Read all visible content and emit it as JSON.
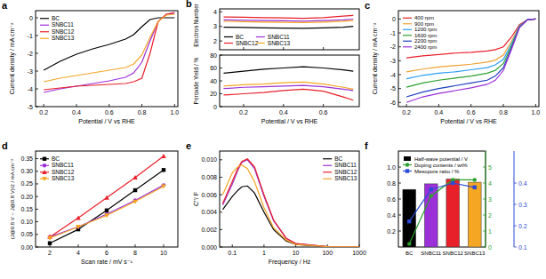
{
  "chart_data": [
    {
      "type": "line",
      "title": "a",
      "xlabel": "Potential / V vs RHE",
      "ylabel": "Current density / mA cm⁻²",
      "x": [
        0.2,
        0.3,
        0.4,
        0.5,
        0.6,
        0.7,
        0.75,
        0.8,
        0.85,
        0.9,
        0.95,
        1.0
      ],
      "xlim": [
        0.15,
        1.02
      ],
      "xticks": [
        0.2,
        0.4,
        0.6,
        0.8,
        {
          "value": 1.0,
          "label": "1.0"
        }
      ],
      "ylim": [
        -5,
        0.4
      ],
      "yticks": [
        -5,
        -4,
        -3,
        -2,
        -1,
        0
      ],
      "legend": "upper left",
      "series": [
        {
          "name": "BC",
          "color": "#000000",
          "values": [
            -2.95,
            -2.45,
            -2.05,
            -1.75,
            -1.5,
            -1.2,
            -0.95,
            -0.5,
            -0.1,
            0.0,
            0.0,
            0.0
          ]
        },
        {
          "name": "SNBC11",
          "color": "#9b30d9",
          "values": [
            -4.2,
            -4.0,
            -3.85,
            -3.7,
            -3.55,
            -3.35,
            -3.1,
            -2.5,
            -1.3,
            -0.2,
            0.2,
            0.25
          ]
        },
        {
          "name": "SNBC12",
          "color": "#e8202a",
          "values": [
            -4.05,
            -3.95,
            -3.85,
            -3.8,
            -3.75,
            -3.7,
            -3.6,
            -3.4,
            -2.0,
            -0.2,
            0.2,
            0.3
          ]
        },
        {
          "name": "SNBC13",
          "color": "#f5a623",
          "values": [
            -3.6,
            -3.4,
            -3.25,
            -3.1,
            -2.95,
            -2.8,
            -2.6,
            -2.1,
            -1.1,
            -0.2,
            0.15,
            0.2
          ]
        }
      ]
    },
    {
      "type": "line",
      "title": "b",
      "ylabel": "Electron Number",
      "x": [
        0.1,
        0.2,
        0.3,
        0.4,
        0.5,
        0.6,
        0.7,
        0.75
      ],
      "xlim": [
        0.08,
        0.78
      ],
      "xticks": [
        0.2,
        0.4,
        0.6
      ],
      "ylim": [
        1.4,
        4.2
      ],
      "yticks": [
        2,
        3,
        4
      ],
      "tick_labels": "y",
      "legend": "lower left",
      "series": [
        {
          "name": "BC",
          "color": "#000000",
          "values": [
            2.95,
            2.93,
            2.9,
            2.88,
            2.87,
            2.9,
            2.95,
            3.0
          ]
        },
        {
          "name": "SNBC11",
          "color": "#9b30d9",
          "values": [
            3.45,
            3.42,
            3.4,
            3.38,
            3.36,
            3.4,
            3.45,
            3.5
          ]
        },
        {
          "name": "SNBC12",
          "color": "#e8202a",
          "values": [
            3.65,
            3.63,
            3.6,
            3.58,
            3.55,
            3.6,
            3.7,
            3.75
          ]
        },
        {
          "name": "SNBC13",
          "color": "#f5a623",
          "values": [
            3.35,
            3.32,
            3.3,
            3.28,
            3.26,
            3.3,
            3.35,
            3.4
          ]
        }
      ]
    },
    {
      "type": "line",
      "xlabel": "Potential / V vs RHE",
      "ylabel": "Peroxide Yield / %",
      "x": [
        0.1,
        0.2,
        0.3,
        0.4,
        0.5,
        0.6,
        0.7,
        0.75
      ],
      "xlim": [
        0.08,
        0.78
      ],
      "xticks": [
        0.2,
        0.4,
        0.6
      ],
      "ylim": [
        0,
        80
      ],
      "yticks": [
        0,
        20,
        40,
        60,
        80
      ],
      "series": [
        {
          "color": "#000000",
          "values": [
            52,
            55,
            58,
            60,
            62,
            60,
            57,
            55
          ]
        },
        {
          "color": "#9b30d9",
          "values": [
            28,
            30,
            31,
            32,
            33,
            31,
            27,
            25
          ]
        },
        {
          "color": "#e8202a",
          "values": [
            18,
            20,
            22,
            25,
            27,
            24,
            15,
            10
          ]
        },
        {
          "color": "#f5a623",
          "values": [
            32,
            34,
            35,
            37,
            38,
            35,
            30,
            27
          ]
        }
      ]
    },
    {
      "type": "line",
      "title": "c",
      "xlabel": "Potential / V vs RHE",
      "ylabel": "Current density / mA cm⁻²",
      "x": [
        0.2,
        0.3,
        0.4,
        0.5,
        0.6,
        0.7,
        0.75,
        0.8,
        0.85,
        0.9,
        0.95,
        1.0
      ],
      "xlim": [
        0.15,
        1.02
      ],
      "xticks": [
        0.2,
        0.4,
        0.6,
        0.8,
        {
          "value": 1.0,
          "label": "1.0"
        }
      ],
      "ylim": [
        -6.3,
        0.6
      ],
      "yticks": [
        -6,
        -5,
        -4,
        -3,
        -2,
        -1,
        0
      ],
      "legend": "upper left",
      "series": [
        {
          "name": "400 rpm",
          "color": "#e8202a",
          "values": [
            -2.8,
            -2.65,
            -2.55,
            -2.45,
            -2.4,
            -2.3,
            -2.2,
            -2.0,
            -1.3,
            -0.4,
            -0.05,
            0
          ]
        },
        {
          "name": "900 rpm",
          "color": "#f0a030",
          "values": [
            -3.8,
            -3.6,
            -3.45,
            -3.35,
            -3.25,
            -3.1,
            -2.95,
            -2.6,
            -1.6,
            -0.5,
            -0.05,
            0
          ]
        },
        {
          "name": "1200 rpm",
          "color": "#2a9df4",
          "values": [
            -4.3,
            -4.05,
            -3.9,
            -3.8,
            -3.65,
            -3.5,
            -3.3,
            -2.9,
            -1.8,
            -0.5,
            -0.05,
            0
          ]
        },
        {
          "name": "1600 rpm",
          "color": "#2ca02c",
          "values": [
            -4.9,
            -4.6,
            -4.4,
            -4.25,
            -4.1,
            -3.9,
            -3.7,
            -3.2,
            -1.95,
            -0.55,
            -0.05,
            0
          ]
        },
        {
          "name": "2200 rpm",
          "color": "#1f3fbf",
          "values": [
            -5.6,
            -5.25,
            -5.0,
            -4.8,
            -4.6,
            -4.4,
            -4.1,
            -3.5,
            -2.1,
            -0.6,
            -0.05,
            0
          ]
        },
        {
          "name": "2400 rpm",
          "color": "#9b30d9",
          "values": [
            -6.0,
            -5.6,
            -5.35,
            -5.15,
            -4.95,
            -4.7,
            -4.4,
            -3.7,
            -2.2,
            -0.6,
            -0.05,
            0
          ]
        }
      ]
    },
    {
      "type": "line",
      "title": "d",
      "xlabel": "Scan rate / mV s⁻¹",
      "ylabel": "(J@0.8 V − J@0.8 V)/2 / mA cm⁻²",
      "x": [
        2,
        4,
        6,
        8,
        10
      ],
      "xlim": [
        1,
        11
      ],
      "xticks": [
        2,
        4,
        6,
        8,
        10
      ],
      "ylim": [
        0,
        0.38
      ],
      "yticks": [
        {
          "value": 0,
          "label": "0.00"
        },
        {
          "value": 0.05,
          "label": "0.05"
        },
        {
          "value": 0.1,
          "label": "0.10"
        },
        {
          "value": 0.15,
          "label": "0.15"
        },
        {
          "value": 0.2,
          "label": "0.20"
        },
        {
          "value": 0.25,
          "label": "0.25"
        },
        {
          "value": 0.3,
          "label": "0.30"
        },
        {
          "value": 0.35,
          "label": "0.35"
        }
      ],
      "legend": "upper left",
      "series": [
        {
          "name": "BC",
          "color": "#000000",
          "marker": "square",
          "values": [
            0.015,
            0.07,
            0.145,
            0.225,
            0.305
          ]
        },
        {
          "name": "SNBC11",
          "color": "#9b30d9",
          "marker": "circle",
          "values": [
            0.04,
            0.08,
            0.13,
            0.185,
            0.245
          ]
        },
        {
          "name": "SNBC12",
          "color": "#e8202a",
          "marker": "triangle",
          "values": [
            0.04,
            0.115,
            0.195,
            0.275,
            0.36
          ]
        },
        {
          "name": "SNBC13",
          "color": "#f5a623",
          "marker": "triangle-down",
          "values": [
            0.035,
            0.08,
            0.125,
            0.18,
            0.24
          ]
        }
      ]
    },
    {
      "type": "line",
      "title": "e",
      "xlabel": "Frequency / Hz",
      "ylabel": "C''/ F",
      "log": "x",
      "x": [
        0.05,
        0.1,
        0.15,
        0.2,
        0.3,
        0.5,
        1,
        2,
        5,
        10,
        100,
        1000
      ],
      "xlim": [
        0.04,
        1000
      ],
      "xticks": [
        0.1,
        1,
        10,
        100,
        1000
      ],
      "ylim": [
        0,
        0.011
      ],
      "yticks": [
        {
          "value": 0,
          "label": "0.000"
        },
        {
          "value": 0.002,
          "label": "0.002"
        },
        {
          "value": 0.004,
          "label": "0.004"
        },
        {
          "value": 0.006,
          "label": "0.006"
        },
        {
          "value": 0.008,
          "label": "0.008"
        },
        {
          "value": 0.01,
          "label": "0.010"
        }
      ],
      "legend": "upper right",
      "series": [
        {
          "name": "BC",
          "color": "#000000",
          "values": [
            0.0043,
            0.0058,
            0.0065,
            0.0069,
            0.007,
            0.0062,
            0.004,
            0.002,
            0.0007,
            0.0003,
            5e-05,
            1e-05
          ]
        },
        {
          "name": "SNBC11",
          "color": "#9b30d9",
          "values": [
            0.0048,
            0.0072,
            0.0088,
            0.0097,
            0.01,
            0.009,
            0.0058,
            0.003,
            0.001,
            0.0004,
            5e-05,
            1e-05
          ]
        },
        {
          "name": "SNBC12",
          "color": "#e8202a",
          "values": [
            0.005,
            0.0075,
            0.009,
            0.0098,
            0.0101,
            0.0092,
            0.006,
            0.0031,
            0.001,
            0.0004,
            5e-05,
            1e-05
          ]
        },
        {
          "name": "SNBC13",
          "color": "#f5a623",
          "values": [
            0.006,
            0.0085,
            0.0092,
            0.0094,
            0.009,
            0.0075,
            0.0045,
            0.0022,
            0.0008,
            0.0003,
            5e-05,
            1e-05
          ]
        }
      ]
    },
    {
      "type": "bar",
      "title": "f",
      "categories": [
        "BC",
        "SNBC11",
        "SNBC12",
        "SNBC13"
      ],
      "ylim": [
        0,
        1.2
      ],
      "yticks": [
        0.2,
        0.4,
        0.6,
        0.8,
        {
          "value": 1.0,
          "label": "1.0"
        }
      ],
      "y2lim": [
        0,
        6
      ],
      "y2ticks": [
        0,
        1,
        2,
        3,
        4,
        5
      ],
      "legend": "upper left",
      "series": [
        {
          "name": "Half-wave potential / V",
          "type": "bar",
          "colors": [
            "#000000",
            "#9b30d9",
            "#e8202a",
            "#f5a623"
          ],
          "values": [
            0.72,
            0.79,
            0.85,
            0.81
          ]
        },
        {
          "name": "Doping contents / wt%",
          "type": "line",
          "axis": "y2",
          "color": "#2ca02c",
          "marker": "circle",
          "values": [
            0.2,
            3.2,
            4.2,
            4.2
          ]
        }
      ]
    },
    {
      "type": "line",
      "categories": [
        "BC",
        "SNBC11",
        "SNBC12",
        "SNBC13"
      ],
      "tick_labels": "y",
      "ylim": [
        0.1,
        0.55
      ],
      "yticks": [
        0.1,
        0.2,
        0.3,
        0.4
      ],
      "series": [
        {
          "name": "Mesopore ratio / %",
          "color": "#2b4bd6",
          "marker": "square",
          "values": [
            0.22,
            0.37,
            0.4,
            0.38
          ]
        }
      ]
    }
  ]
}
